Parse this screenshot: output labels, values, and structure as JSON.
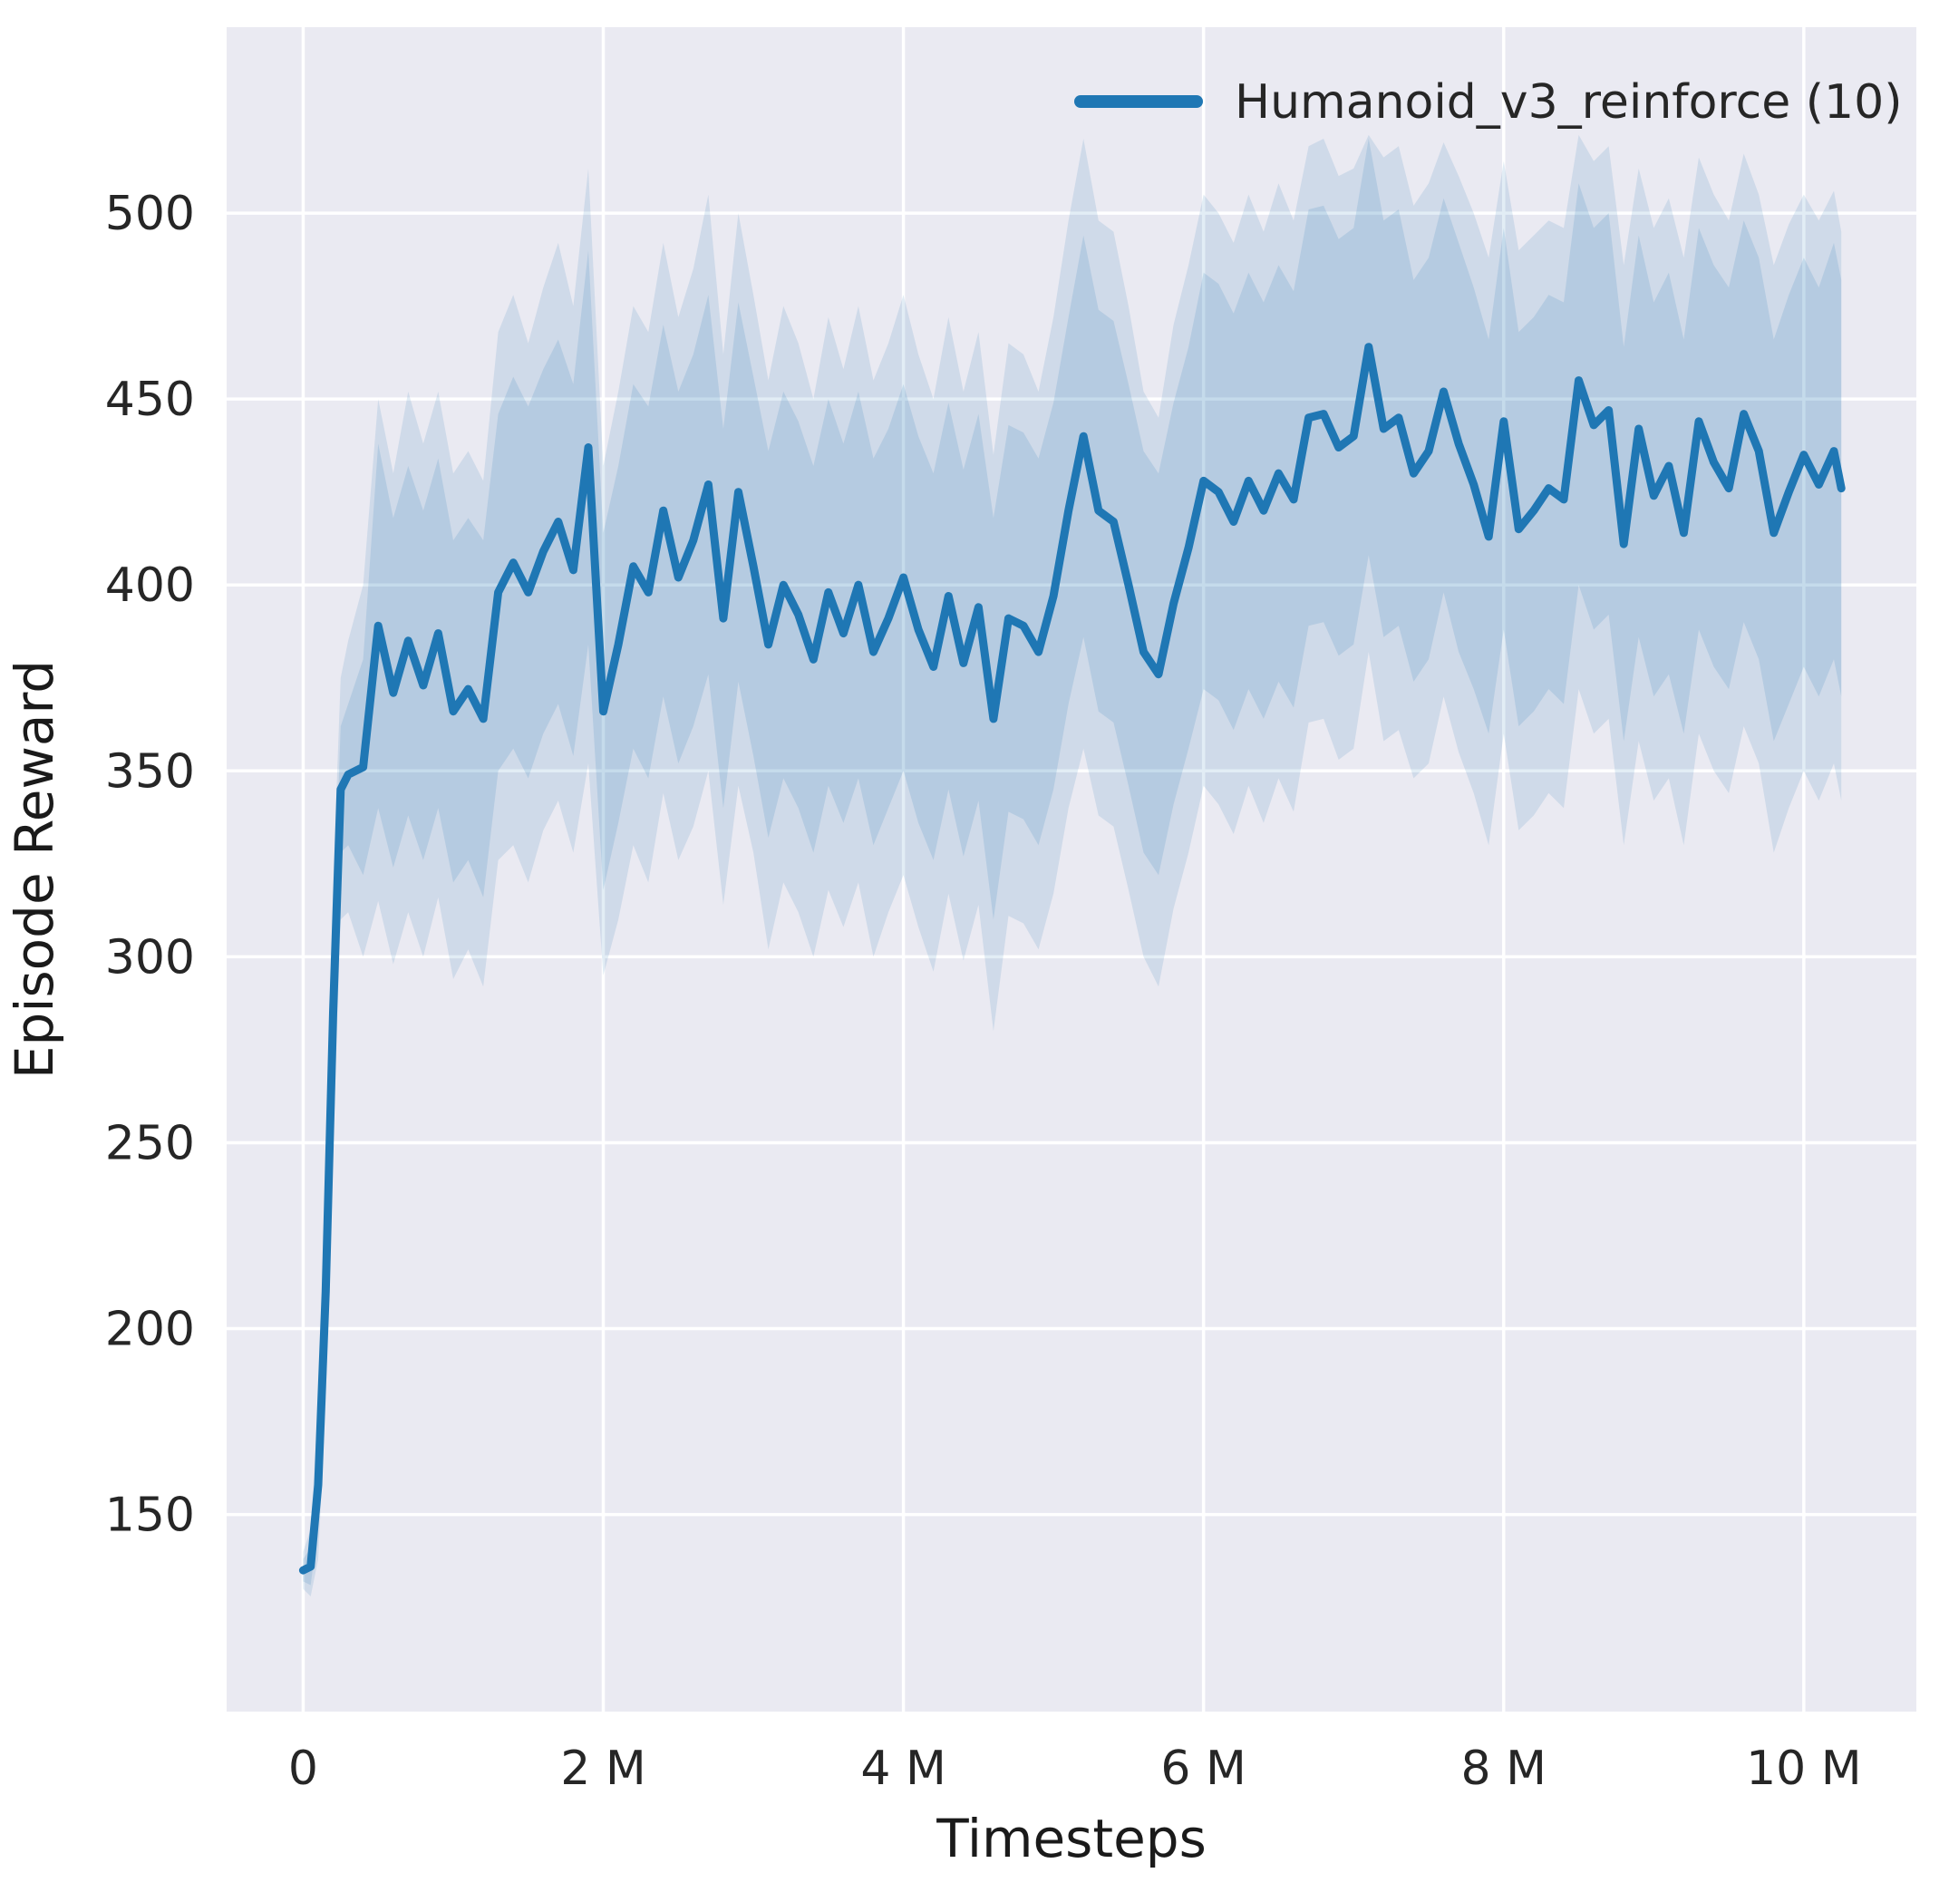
{
  "figure": {
    "kind": "training-curve-plot",
    "background": "#ffffff"
  },
  "colors": {
    "axes_background": "#eaeaf2",
    "grid": "#ffffff",
    "line": "#1f77b4",
    "band_outer_alpha": 0.13,
    "band_inner_alpha": 0.15,
    "tick_text": "#262626",
    "label_text": "#1a1a1a"
  },
  "chart_data": {
    "type": "line",
    "title": "",
    "xlabel": "Timesteps",
    "ylabel": "Episode Reward",
    "xlim": [
      -0.51,
      10.75
    ],
    "ylim": [
      97,
      550
    ],
    "grid": true,
    "legend_position": "upper right",
    "x_unit": "millions",
    "xticks": [
      {
        "v": 0,
        "label": "0"
      },
      {
        "v": 2,
        "label": "2 M"
      },
      {
        "v": 4,
        "label": "4 M"
      },
      {
        "v": 6,
        "label": "6 M"
      },
      {
        "v": 8,
        "label": "8 M"
      },
      {
        "v": 10,
        "label": "10 M"
      }
    ],
    "yticks": [
      {
        "v": 150,
        "label": "150"
      },
      {
        "v": 200,
        "label": "200"
      },
      {
        "v": 250,
        "label": "250"
      },
      {
        "v": 300,
        "label": "300"
      },
      {
        "v": 350,
        "label": "350"
      },
      {
        "v": 400,
        "label": "400"
      },
      {
        "v": 450,
        "label": "450"
      },
      {
        "v": 500,
        "label": "500"
      }
    ],
    "series": [
      {
        "name": "Humanoid_v3_reinforce (10)",
        "x": [
          0,
          0.05,
          0.1,
          0.15,
          0.2,
          0.25,
          0.3,
          0.4,
          0.5,
          0.6,
          0.7,
          0.8,
          0.9,
          1.0,
          1.1,
          1.2,
          1.3,
          1.4,
          1.5,
          1.6,
          1.7,
          1.8,
          1.9,
          2.0,
          2.1,
          2.2,
          2.3,
          2.4,
          2.5,
          2.6,
          2.7,
          2.8,
          2.9,
          3.0,
          3.1,
          3.2,
          3.3,
          3.4,
          3.5,
          3.6,
          3.7,
          3.8,
          3.9,
          4.0,
          4.1,
          4.2,
          4.3,
          4.4,
          4.5,
          4.6,
          4.7,
          4.8,
          4.9,
          5.0,
          5.1,
          5.2,
          5.3,
          5.4,
          5.5,
          5.6,
          5.7,
          5.8,
          5.9,
          6.0,
          6.1,
          6.2,
          6.3,
          6.4,
          6.5,
          6.6,
          6.7,
          6.8,
          6.9,
          7.0,
          7.1,
          7.2,
          7.3,
          7.4,
          7.5,
          7.6,
          7.7,
          7.8,
          7.9,
          8.0,
          8.1,
          8.2,
          8.3,
          8.4,
          8.5,
          8.6,
          8.7,
          8.8,
          8.9,
          9.0,
          9.1,
          9.2,
          9.3,
          9.4,
          9.5,
          9.6,
          9.7,
          9.8,
          9.9,
          10.0,
          10.1,
          10.2,
          10.25
        ],
        "mean": [
          135,
          136,
          158,
          210,
          285,
          345,
          349,
          351,
          389,
          371,
          385,
          373,
          387,
          366,
          372,
          364,
          398,
          406,
          398,
          409,
          417,
          404,
          437,
          366,
          384,
          405,
          398,
          420,
          402,
          412,
          427,
          391,
          425,
          405,
          384,
          400,
          392,
          380,
          398,
          387,
          400,
          382,
          391,
          402,
          388,
          378,
          397,
          379,
          394,
          364,
          391,
          389,
          382,
          397,
          420,
          440,
          420,
          417,
          400,
          382,
          376,
          395,
          410,
          428,
          425,
          417,
          428,
          420,
          430,
          423,
          445,
          446,
          437,
          440,
          464,
          442,
          445,
          430,
          436,
          452,
          438,
          427,
          413,
          444,
          415,
          420,
          426,
          423,
          455,
          443,
          447,
          411,
          442,
          424,
          432,
          414,
          444,
          433,
          426,
          446,
          436,
          414,
          425,
          435,
          427,
          436,
          426
        ],
        "band_inner_lo": [
          132,
          131,
          147,
          194,
          266,
          328,
          330,
          322,
          340,
          324,
          338,
          326,
          340,
          320,
          326,
          316,
          350,
          356,
          348,
          360,
          368,
          354,
          384,
          318,
          336,
          356,
          348,
          370,
          352,
          362,
          376,
          340,
          374,
          354,
          332,
          348,
          340,
          328,
          346,
          336,
          348,
          330,
          340,
          350,
          336,
          326,
          345,
          327,
          342,
          310,
          339,
          337,
          330,
          345,
          368,
          386,
          366,
          363,
          346,
          328,
          322,
          341,
          356,
          372,
          369,
          361,
          372,
          364,
          374,
          367,
          389,
          390,
          381,
          384,
          408,
          386,
          389,
          374,
          380,
          398,
          382,
          372,
          360,
          388,
          362,
          366,
          372,
          368,
          400,
          388,
          392,
          358,
          386,
          370,
          376,
          360,
          388,
          378,
          372,
          390,
          380,
          358,
          368,
          378,
          370,
          380,
          370
        ],
        "band_inner_hi": [
          138,
          141,
          169,
          226,
          304,
          362,
          368,
          380,
          438,
          418,
          432,
          420,
          434,
          412,
          418,
          412,
          446,
          456,
          448,
          458,
          466,
          454,
          490,
          414,
          432,
          454,
          448,
          470,
          452,
          462,
          478,
          442,
          476,
          456,
          436,
          452,
          444,
          432,
          450,
          438,
          452,
          434,
          442,
          454,
          440,
          430,
          449,
          431,
          446,
          418,
          443,
          441,
          434,
          449,
          472,
          494,
          474,
          471,
          454,
          436,
          430,
          449,
          464,
          484,
          481,
          473,
          484,
          476,
          486,
          479,
          501,
          502,
          493,
          496,
          520,
          498,
          501,
          482,
          488,
          504,
          492,
          480,
          466,
          496,
          468,
          472,
          478,
          476,
          508,
          496,
          500,
          464,
          494,
          476,
          484,
          466,
          496,
          486,
          480,
          498,
          488,
          466,
          478,
          488,
          480,
          492,
          482
        ],
        "band_outer_lo": [
          130,
          128,
          138,
          180,
          248,
          310,
          312,
          300,
          315,
          298,
          312,
          300,
          316,
          294,
          302,
          292,
          326,
          330,
          320,
          334,
          342,
          328,
          352,
          295,
          310,
          330,
          320,
          344,
          326,
          335,
          350,
          314,
          346,
          328,
          302,
          320,
          312,
          300,
          318,
          308,
          320,
          300,
          312,
          322,
          308,
          296,
          317,
          299,
          314,
          280,
          311,
          309,
          302,
          317,
          340,
          356,
          338,
          335,
          318,
          300,
          292,
          313,
          328,
          346,
          341,
          333,
          346,
          336,
          348,
          339,
          363,
          364,
          353,
          356,
          382,
          358,
          361,
          348,
          352,
          370,
          355,
          344,
          330,
          360,
          334,
          338,
          344,
          340,
          372,
          360,
          364,
          330,
          358,
          342,
          348,
          330,
          360,
          350,
          344,
          362,
          352,
          328,
          340,
          350,
          342,
          352,
          342
        ],
        "band_outer_hi": [
          140,
          146,
          180,
          240,
          320,
          375,
          385,
          400,
          450,
          430,
          452,
          438,
          452,
          430,
          436,
          428,
          468,
          478,
          465,
          480,
          492,
          475,
          512,
          432,
          452,
          475,
          468,
          492,
          472,
          485,
          505,
          462,
          500,
          478,
          455,
          475,
          465,
          450,
          472,
          458,
          475,
          455,
          465,
          478,
          462,
          450,
          472,
          452,
          468,
          435,
          465,
          462,
          452,
          472,
          498,
          520,
          498,
          495,
          475,
          452,
          445,
          470,
          486,
          505,
          500,
          492,
          505,
          495,
          508,
          498,
          518,
          520,
          510,
          512,
          521,
          515,
          518,
          502,
          508,
          519,
          510,
          500,
          488,
          514,
          490,
          494,
          498,
          496,
          521,
          514,
          518,
          486,
          512,
          496,
          504,
          488,
          515,
          505,
          498,
          516,
          505,
          486,
          497,
          505,
          498,
          506,
          495
        ]
      }
    ]
  }
}
